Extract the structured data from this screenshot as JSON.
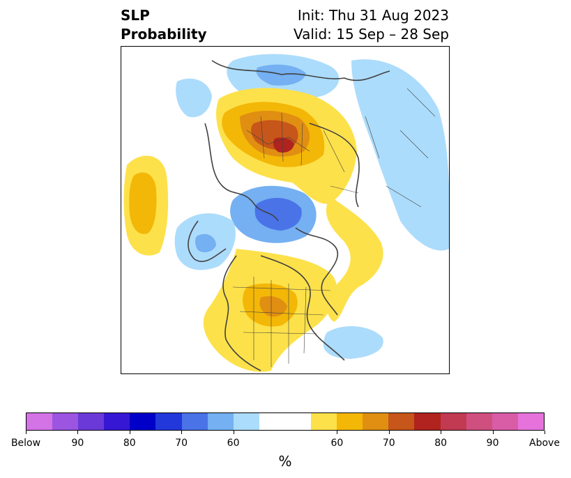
{
  "title": {
    "variable_line1": "SLP",
    "variable_line2": "Probability",
    "init": "Init: Thu 31 Aug 2023",
    "valid": "Valid: 15 Sep – 28 Sep"
  },
  "map": {
    "projection": "north-polar stereographic",
    "features": [
      "coastlines",
      "country borders",
      "US state borders",
      "Canadian province borders"
    ],
    "anomaly_regions": [
      {
        "region": "Northern Europe / Baltic",
        "category": "above",
        "level": "80"
      },
      {
        "region": "North Pacific",
        "category": "above",
        "level": "60-65"
      },
      {
        "region": "Central North America",
        "category": "above",
        "level": "65-70"
      },
      {
        "region": "Arctic Ocean / Greenland",
        "category": "below",
        "level": "70"
      },
      {
        "region": "Alaska / Bering",
        "category": "below",
        "level": "60-65"
      },
      {
        "region": "Western Atlantic",
        "category": "below",
        "level": "60"
      },
      {
        "region": "Siberia / East Asia",
        "category": "below",
        "level": "60"
      }
    ]
  },
  "colorbar": {
    "colors": [
      "#d373e6",
      "#9c55e0",
      "#6b39d8",
      "#3618d4",
      "#0000c9",
      "#2238db",
      "#4a73e8",
      "#74b0f2",
      "#acdcfc",
      "#ffffff",
      "#fde14a",
      "#f3b708",
      "#e08f12",
      "#c7561a",
      "#b0231e",
      "#c23a52",
      "#cf4f7f",
      "#d95ca6",
      "#e673dc"
    ],
    "widths": [
      1,
      1,
      1,
      1,
      1,
      1,
      1,
      1,
      1,
      2,
      1,
      1,
      1,
      1,
      1,
      1,
      1,
      1,
      1
    ],
    "tick_labels": [
      "Below",
      "90",
      "80",
      "70",
      "60",
      "60",
      "70",
      "80",
      "90",
      "Above"
    ],
    "unit": "%"
  }
}
